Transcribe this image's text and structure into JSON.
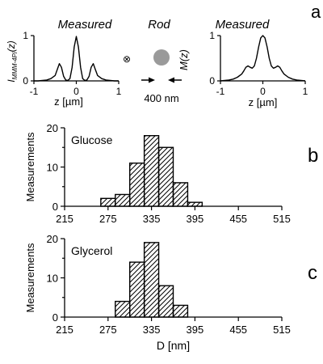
{
  "figure": {
    "panel_a": {
      "letter": "a",
      "left_title": "Measured",
      "center_title": "Rod",
      "right_title": "Measured",
      "left_ylabel": "I",
      "left_ylabel_sub": "MMM-4Pi",
      "left_ylabel_arg": "(z)",
      "right_ylabel": "M(z)",
      "xlabel": "z [µm]",
      "scale_label": "400 nm",
      "cross_symbol": "⊗"
    },
    "panel_b": {
      "letter": "b"
    },
    "panel_c": {
      "letter": "c"
    }
  },
  "chart_data": [
    {
      "type": "line",
      "panel": "a-left",
      "title": "Measured",
      "xlabel": "z [µm]",
      "ylabel": "I_MMM-4Pi(z)",
      "xlim": [
        -1,
        1
      ],
      "ylim": [
        0,
        1
      ],
      "xticks": [
        "-1",
        "0",
        "1"
      ],
      "yticks": [
        "0",
        "1"
      ],
      "x": [
        -1.0,
        -0.9,
        -0.8,
        -0.7,
        -0.6,
        -0.5,
        -0.45,
        -0.4,
        -0.35,
        -0.3,
        -0.25,
        -0.2,
        -0.15,
        -0.1,
        -0.05,
        0.0,
        0.05,
        0.1,
        0.15,
        0.2,
        0.25,
        0.3,
        0.35,
        0.4,
        0.45,
        0.5,
        0.6,
        0.7,
        0.8,
        0.9,
        1.0
      ],
      "y": [
        0.0,
        0.0,
        0.01,
        0.02,
        0.05,
        0.12,
        0.25,
        0.38,
        0.3,
        0.1,
        0.02,
        0.01,
        0.05,
        0.3,
        0.75,
        0.98,
        0.75,
        0.3,
        0.05,
        0.01,
        0.02,
        0.1,
        0.3,
        0.38,
        0.25,
        0.12,
        0.05,
        0.02,
        0.01,
        0.0,
        0.0
      ]
    },
    {
      "type": "line",
      "panel": "a-right",
      "title": "Measured",
      "xlabel": "z [µm]",
      "ylabel": "M(z)",
      "xlim": [
        -1,
        1
      ],
      "ylim": [
        0,
        1
      ],
      "xticks": [
        "-1",
        "0",
        "1"
      ],
      "yticks": [
        "0",
        "1"
      ],
      "x": [
        -1.0,
        -0.9,
        -0.8,
        -0.7,
        -0.6,
        -0.5,
        -0.45,
        -0.4,
        -0.35,
        -0.3,
        -0.25,
        -0.2,
        -0.15,
        -0.1,
        -0.05,
        0.0,
        0.05,
        0.1,
        0.15,
        0.2,
        0.25,
        0.3,
        0.35,
        0.4,
        0.45,
        0.5,
        0.6,
        0.7,
        0.8,
        0.9,
        1.0
      ],
      "y": [
        0.0,
        0.01,
        0.02,
        0.04,
        0.08,
        0.15,
        0.22,
        0.3,
        0.33,
        0.3,
        0.28,
        0.33,
        0.5,
        0.75,
        0.95,
        1.0,
        0.95,
        0.75,
        0.5,
        0.33,
        0.28,
        0.3,
        0.33,
        0.3,
        0.22,
        0.15,
        0.08,
        0.04,
        0.02,
        0.01,
        0.0
      ]
    },
    {
      "type": "bar",
      "panel": "b",
      "title": "Glucose",
      "xlabel": "",
      "ylabel": "Measurements",
      "xlim": [
        215,
        515
      ],
      "ylim": [
        0,
        20
      ],
      "xticks": [
        "215",
        "275",
        "335",
        "395",
        "455",
        "515"
      ],
      "yticks": [
        "0",
        "10",
        "20"
      ],
      "bin_width": 20,
      "bin_starts": [
        245,
        265,
        285,
        305,
        325,
        345,
        365,
        385,
        405,
        425,
        445
      ],
      "values": [
        0,
        2,
        3,
        11,
        18,
        15,
        6,
        1,
        0,
        0,
        0
      ]
    },
    {
      "type": "bar",
      "panel": "c",
      "title": "Glycerol",
      "xlabel": "D [nm]",
      "ylabel": "Measurements",
      "xlim": [
        215,
        515
      ],
      "ylim": [
        0,
        20
      ],
      "xticks": [
        "215",
        "275",
        "335",
        "395",
        "455",
        "515"
      ],
      "yticks": [
        "0",
        "10",
        "20"
      ],
      "bin_width": 20,
      "bin_starts": [
        265,
        285,
        305,
        325,
        345,
        365,
        385,
        405
      ],
      "values": [
        0,
        4,
        14,
        19,
        8,
        3,
        0,
        0
      ]
    }
  ]
}
